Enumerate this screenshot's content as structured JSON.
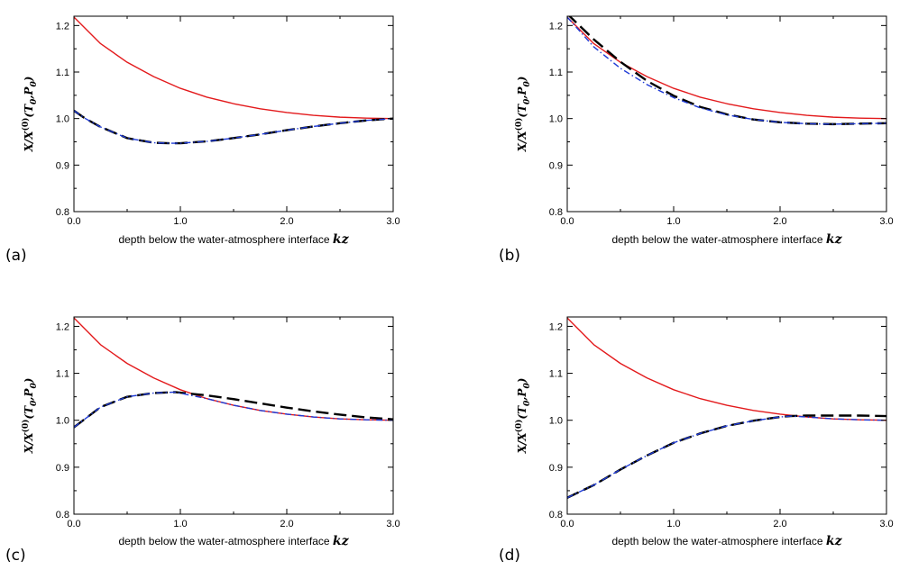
{
  "xlabel_prefix": "depth below the water-atmosphere interface",
  "xlabel_var": "kz",
  "ylabel_parts": {
    "a": "X/X",
    "sup": "(0)",
    "b": "(T",
    "sub1": "0",
    "c": ",P",
    "sub2": "0",
    "d": ")"
  },
  "colors": {
    "solid": "#e31a1c",
    "dashdot": "#1f3bd6",
    "dashed": "#000000"
  },
  "chart_data": [
    {
      "type": "line",
      "panel": "(a)",
      "xlabel": "depth below the water-atmosphere interface kz",
      "ylabel": "X/X(0)(T0,P0)",
      "xlim": [
        0,
        3
      ],
      "ylim": [
        0.8,
        1.22
      ],
      "xticks": [
        "0.0",
        "1.0",
        "2.0",
        "3.0"
      ],
      "yticks": [
        "0.8",
        "0.9",
        "1.0",
        "1.1",
        "1.2"
      ],
      "series": [
        {
          "style": "solid",
          "color": "#e31a1c",
          "x": [
            0,
            0.25,
            0.5,
            0.75,
            1.0,
            1.25,
            1.5,
            1.75,
            2.0,
            2.25,
            2.5,
            2.75,
            3.0
          ],
          "y": [
            1.218,
            1.161,
            1.121,
            1.09,
            1.065,
            1.046,
            1.032,
            1.021,
            1.013,
            1.007,
            1.003,
            1.001,
            1.0
          ]
        },
        {
          "style": "dashdot",
          "color": "#1f3bd6",
          "x": [
            0,
            0.1,
            0.25,
            0.5,
            0.75,
            0.9,
            1.0,
            1.25,
            1.5,
            1.75,
            2.0,
            2.25,
            2.5,
            2.75,
            3.0
          ],
          "y": [
            1.017,
            1.001,
            0.982,
            0.958,
            0.948,
            0.947,
            0.947,
            0.951,
            0.958,
            0.966,
            0.975,
            0.983,
            0.99,
            0.996,
            1.0
          ]
        },
        {
          "style": "dashed",
          "color": "#000000",
          "x": [
            0,
            0.1,
            0.25,
            0.5,
            0.75,
            0.9,
            1.0,
            1.25,
            1.5,
            1.75,
            2.0,
            2.25,
            2.5,
            2.75,
            3.0
          ],
          "y": [
            1.017,
            1.001,
            0.982,
            0.958,
            0.948,
            0.947,
            0.947,
            0.951,
            0.958,
            0.966,
            0.975,
            0.983,
            0.99,
            0.996,
            1.0
          ]
        }
      ]
    },
    {
      "type": "line",
      "panel": "(b)",
      "xlabel": "depth below the water-atmosphere interface kz",
      "ylabel": "X/X(0)(T0,P0)",
      "xlim": [
        0,
        3
      ],
      "ylim": [
        0.8,
        1.22
      ],
      "xticks": [
        "0.0",
        "1.0",
        "2.0",
        "3.0"
      ],
      "yticks": [
        "0.8",
        "0.9",
        "1.0",
        "1.1",
        "1.2"
      ],
      "series": [
        {
          "style": "solid",
          "color": "#e31a1c",
          "x": [
            0,
            0.25,
            0.5,
            0.75,
            1.0,
            1.25,
            1.5,
            1.75,
            2.0,
            2.25,
            2.5,
            2.75,
            3.0
          ],
          "y": [
            1.218,
            1.161,
            1.121,
            1.09,
            1.065,
            1.046,
            1.032,
            1.021,
            1.013,
            1.007,
            1.003,
            1.001,
            1.0
          ]
        },
        {
          "style": "dashdot",
          "color": "#1f3bd6",
          "x": [
            0,
            0.25,
            0.5,
            0.75,
            1.0,
            1.25,
            1.5,
            1.75,
            2.0,
            2.25,
            2.5,
            2.75,
            3.0
          ],
          "y": [
            1.218,
            1.154,
            1.108,
            1.073,
            1.045,
            1.023,
            1.008,
            0.998,
            0.992,
            0.989,
            0.988,
            0.989,
            0.99
          ]
        },
        {
          "style": "dashed",
          "color": "#000000",
          "x": [
            0,
            0.25,
            0.5,
            0.75,
            1.0,
            1.25,
            1.5,
            1.75,
            2.0,
            2.25,
            2.5,
            2.75,
            3.0
          ],
          "y": [
            1.225,
            1.17,
            1.122,
            1.081,
            1.049,
            1.025,
            1.009,
            0.998,
            0.992,
            0.989,
            0.988,
            0.989,
            0.99
          ]
        }
      ]
    },
    {
      "type": "line",
      "panel": "(c)",
      "xlabel": "depth below the water-atmosphere interface kz",
      "ylabel": "X/X(0)(T0,P0)",
      "xlim": [
        0,
        3
      ],
      "ylim": [
        0.8,
        1.22
      ],
      "xticks": [
        "0.0",
        "1.0",
        "2.0",
        "3.0"
      ],
      "yticks": [
        "0.8",
        "0.9",
        "1.0",
        "1.1",
        "1.2"
      ],
      "series": [
        {
          "style": "solid",
          "color": "#e31a1c",
          "x": [
            0,
            0.25,
            0.5,
            0.75,
            1.0,
            1.25,
            1.5,
            1.75,
            2.0,
            2.25,
            2.5,
            2.75,
            3.0
          ],
          "y": [
            1.218,
            1.161,
            1.121,
            1.09,
            1.065,
            1.046,
            1.032,
            1.021,
            1.013,
            1.007,
            1.003,
            1.001,
            1.0
          ]
        },
        {
          "style": "dashdot",
          "color": "#1f3bd6",
          "x": [
            0,
            0.25,
            0.5,
            0.75,
            0.95,
            1.25,
            1.5,
            1.75,
            2.0,
            2.25,
            2.5,
            2.75,
            3.0
          ],
          "y": [
            0.985,
            1.028,
            1.05,
            1.058,
            1.06,
            1.046,
            1.032,
            1.021,
            1.013,
            1.007,
            1.003,
            1.001,
            1.0
          ]
        },
        {
          "style": "dashed",
          "color": "#000000",
          "x": [
            0,
            0.25,
            0.5,
            0.75,
            0.95,
            1.25,
            1.5,
            1.75,
            2.0,
            2.25,
            2.5,
            2.75,
            3.0
          ],
          "y": [
            0.985,
            1.028,
            1.05,
            1.058,
            1.06,
            1.053,
            1.045,
            1.036,
            1.027,
            1.019,
            1.012,
            1.006,
            1.002
          ]
        }
      ]
    },
    {
      "type": "line",
      "panel": "(d)",
      "xlabel": "depth below the water-atmosphere interface kz",
      "ylabel": "X/X(0)(T0,P0)",
      "xlim": [
        0,
        3
      ],
      "ylim": [
        0.8,
        1.22
      ],
      "xticks": [
        "0.0",
        "1.0",
        "2.0",
        "3.0"
      ],
      "yticks": [
        "0.8",
        "0.9",
        "1.0",
        "1.1",
        "1.2"
      ],
      "series": [
        {
          "style": "solid",
          "color": "#e31a1c",
          "x": [
            0,
            0.25,
            0.5,
            0.75,
            1.0,
            1.25,
            1.5,
            1.75,
            2.0,
            2.25,
            2.5,
            2.75,
            3.0
          ],
          "y": [
            1.218,
            1.161,
            1.121,
            1.09,
            1.065,
            1.046,
            1.032,
            1.021,
            1.013,
            1.007,
            1.003,
            1.001,
            1.0
          ]
        },
        {
          "style": "dashdot",
          "color": "#1f3bd6",
          "x": [
            0,
            0.25,
            0.5,
            0.75,
            1.0,
            1.25,
            1.5,
            1.75,
            2.0,
            2.1,
            2.25,
            2.5,
            2.75,
            3.0
          ],
          "y": [
            0.835,
            0.862,
            0.895,
            0.925,
            0.952,
            0.972,
            0.988,
            0.999,
            1.007,
            1.009,
            1.007,
            1.003,
            1.001,
            1.0
          ]
        },
        {
          "style": "dashed",
          "color": "#000000",
          "x": [
            0,
            0.25,
            0.5,
            0.75,
            1.0,
            1.25,
            1.5,
            1.75,
            2.0,
            2.1,
            2.25,
            2.5,
            2.75,
            3.0
          ],
          "y": [
            0.835,
            0.862,
            0.895,
            0.925,
            0.952,
            0.972,
            0.988,
            0.999,
            1.007,
            1.009,
            1.01,
            1.01,
            1.01,
            1.009
          ]
        }
      ]
    }
  ]
}
